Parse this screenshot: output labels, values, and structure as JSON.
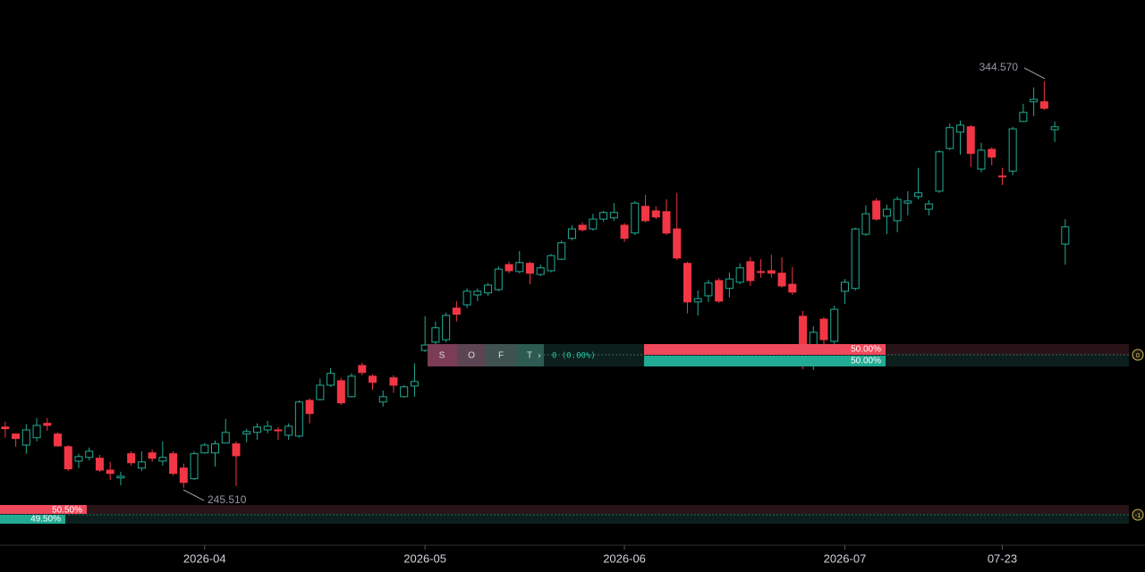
{
  "chart_data": {
    "type": "candlestick",
    "up_color": "#22ab94",
    "down_color": "#f23645",
    "ylim": [
      231.5,
      364.4
    ],
    "xlim": [
      -0.5,
      108.6
    ],
    "xticks": [
      {
        "value": 19,
        "label": "2026-04"
      },
      {
        "value": 40,
        "label": "2026-05"
      },
      {
        "value": 59,
        "label": "2026-06"
      },
      {
        "value": 80,
        "label": "2026-07"
      },
      {
        "value": 95,
        "label": "07-23"
      }
    ],
    "ohlc": [
      [
        260.3,
        261.6,
        257.7,
        259.9
      ],
      [
        258.6,
        258.8,
        255.5,
        257.5
      ],
      [
        255.9,
        261.0,
        253.8,
        259.6
      ],
      [
        257.7,
        262.5,
        256.8,
        260.7
      ],
      [
        261.2,
        262.5,
        259.4,
        260.7
      ],
      [
        258.6,
        259.0,
        255.5,
        255.7
      ],
      [
        255.5,
        255.9,
        249.6,
        250.1
      ],
      [
        252.0,
        253.8,
        250.3,
        253.1
      ],
      [
        252.9,
        255.3,
        252.2,
        254.4
      ],
      [
        252.7,
        253.5,
        249.4,
        249.8
      ],
      [
        249.8,
        251.8,
        247.4,
        249.0
      ],
      [
        247.9,
        249.4,
        246.1,
        248.3
      ],
      [
        253.8,
        254.4,
        250.9,
        251.6
      ],
      [
        250.3,
        254.4,
        249.6,
        251.8
      ],
      [
        254.0,
        254.8,
        251.8,
        252.7
      ],
      [
        252.0,
        256.8,
        250.9,
        252.9
      ],
      [
        253.8,
        254.4,
        248.5,
        249.0
      ],
      [
        250.3,
        251.4,
        245.51,
        246.8
      ],
      [
        247.7,
        254.4,
        247.4,
        253.8
      ],
      [
        254.0,
        256.4,
        253.8,
        255.9
      ],
      [
        254.0,
        257.0,
        250.7,
        256.2
      ],
      [
        256.4,
        262.3,
        256.4,
        259.0
      ],
      [
        256.2,
        256.8,
        245.9,
        253.3
      ],
      [
        258.6,
        259.9,
        256.6,
        259.2
      ],
      [
        259.0,
        261.2,
        257.2,
        260.3
      ],
      [
        259.6,
        261.8,
        258.8,
        260.5
      ],
      [
        259.6,
        260.3,
        257.2,
        259.4
      ],
      [
        258.3,
        261.2,
        257.2,
        260.5
      ],
      [
        258.1,
        266.8,
        257.7,
        266.4
      ],
      [
        266.8,
        267.3,
        261.2,
        263.6
      ],
      [
        267.0,
        272.1,
        266.8,
        270.5
      ],
      [
        270.5,
        274.7,
        270.1,
        273.4
      ],
      [
        271.6,
        272.3,
        265.7,
        266.2
      ],
      [
        267.7,
        273.4,
        267.5,
        272.7
      ],
      [
        275.3,
        276.0,
        272.9,
        273.6
      ],
      [
        272.7,
        273.1,
        269.4,
        271.2
      ],
      [
        266.4,
        269.2,
        265.3,
        267.7
      ],
      [
        272.3,
        272.9,
        268.6,
        270.5
      ],
      [
        267.7,
        270.5,
        267.5,
        270.1
      ],
      [
        270.3,
        275.8,
        267.7,
        271.4
      ],
      [
        279.0,
        287.3,
        278.6,
        280.3
      ],
      [
        281.0,
        286.0,
        280.5,
        284.5
      ],
      [
        281.6,
        288.2,
        281.0,
        287.5
      ],
      [
        289.3,
        291.0,
        286.0,
        287.8
      ],
      [
        290.1,
        294.1,
        289.3,
        293.4
      ],
      [
        292.5,
        294.1,
        291.0,
        293.4
      ],
      [
        293.0,
        295.4,
        292.3,
        294.9
      ],
      [
        293.8,
        299.5,
        293.4,
        298.8
      ],
      [
        299.9,
        300.6,
        297.8,
        298.4
      ],
      [
        298.2,
        303.2,
        297.8,
        300.4
      ],
      [
        300.2,
        300.6,
        295.1,
        297.8
      ],
      [
        297.5,
        299.9,
        297.1,
        299.1
      ],
      [
        298.4,
        302.5,
        298.0,
        302.1
      ],
      [
        301.2,
        305.8,
        301.0,
        305.2
      ],
      [
        306.3,
        309.5,
        305.8,
        308.6
      ],
      [
        309.5,
        310.2,
        308.0,
        308.4
      ],
      [
        308.6,
        312.3,
        308.2,
        311.0
      ],
      [
        311.0,
        313.0,
        310.4,
        312.6
      ],
      [
        311.3,
        314.9,
        310.6,
        312.6
      ],
      [
        309.5,
        310.0,
        305.4,
        306.3
      ],
      [
        307.6,
        315.4,
        307.1,
        314.9
      ],
      [
        314.1,
        316.9,
        310.2,
        310.6
      ],
      [
        313.0,
        314.1,
        311.0,
        311.5
      ],
      [
        312.8,
        315.8,
        307.1,
        307.6
      ],
      [
        308.6,
        317.4,
        301.0,
        301.5
      ],
      [
        300.2,
        300.6,
        288.0,
        290.8
      ],
      [
        290.8,
        293.6,
        287.5,
        291.6
      ],
      [
        292.3,
        296.2,
        290.8,
        295.4
      ],
      [
        296.0,
        296.6,
        290.6,
        291.0
      ],
      [
        294.1,
        298.0,
        291.9,
        296.4
      ],
      [
        295.6,
        300.2,
        295.1,
        299.1
      ],
      [
        300.6,
        301.7,
        294.7,
        296.0
      ],
      [
        298.2,
        301.2,
        296.7,
        298.0
      ],
      [
        298.4,
        302.3,
        296.7,
        297.8
      ],
      [
        297.8,
        301.7,
        294.3,
        294.7
      ],
      [
        295.1,
        299.3,
        292.5,
        293.2
      ],
      [
        287.3,
        288.6,
        274.4,
        276.2
      ],
      [
        276.4,
        284.9,
        274.2,
        283.4
      ],
      [
        286.6,
        287.1,
        279.9,
        281.6
      ],
      [
        281.2,
        289.9,
        279.9,
        289.0
      ],
      [
        293.4,
        296.4,
        290.3,
        295.6
      ],
      [
        294.1,
        308.9,
        293.6,
        308.6
      ],
      [
        307.3,
        314.3,
        306.9,
        312.3
      ],
      [
        315.4,
        316.1,
        310.6,
        311.0
      ],
      [
        311.7,
        314.5,
        307.3,
        313.4
      ],
      [
        310.6,
        316.5,
        307.8,
        315.8
      ],
      [
        314.9,
        317.8,
        311.9,
        315.4
      ],
      [
        316.5,
        323.5,
        315.8,
        317.4
      ],
      [
        313.4,
        315.6,
        311.9,
        314.7
      ],
      [
        317.8,
        327.8,
        317.4,
        327.4
      ],
      [
        328.2,
        334.3,
        327.8,
        333.3
      ],
      [
        332.2,
        335.0,
        326.7,
        333.9
      ],
      [
        333.5,
        333.9,
        323.7,
        327.0
      ],
      [
        323.2,
        329.6,
        322.4,
        327.8
      ],
      [
        328.0,
        328.5,
        324.1,
        326.1
      ],
      [
        321.5,
        323.5,
        319.3,
        321.3
      ],
      [
        322.7,
        333.5,
        321.7,
        333.0
      ],
      [
        334.8,
        339.1,
        334.6,
        337.0
      ],
      [
        339.6,
        343.1,
        336.1,
        340.2
      ],
      [
        339.6,
        344.57,
        337.6,
        338.0
      ],
      [
        332.8,
        334.8,
        329.8,
        333.5
      ],
      [
        304.9,
        311.0,
        299.9,
        309.1
      ]
    ],
    "high_label": "344.570",
    "low_label": "245.510"
  },
  "position_tool": {
    "letters": [
      "S",
      "O",
      "F",
      "T"
    ],
    "arrow": "›",
    "pnl": "0 (0.00%)",
    "sell_pct": "50.00%",
    "buy_pct": "50.00%",
    "badge": "0"
  },
  "lower_tool": {
    "sell_pct": "50.50%",
    "buy_pct": "49.50%",
    "badge": "-1"
  }
}
